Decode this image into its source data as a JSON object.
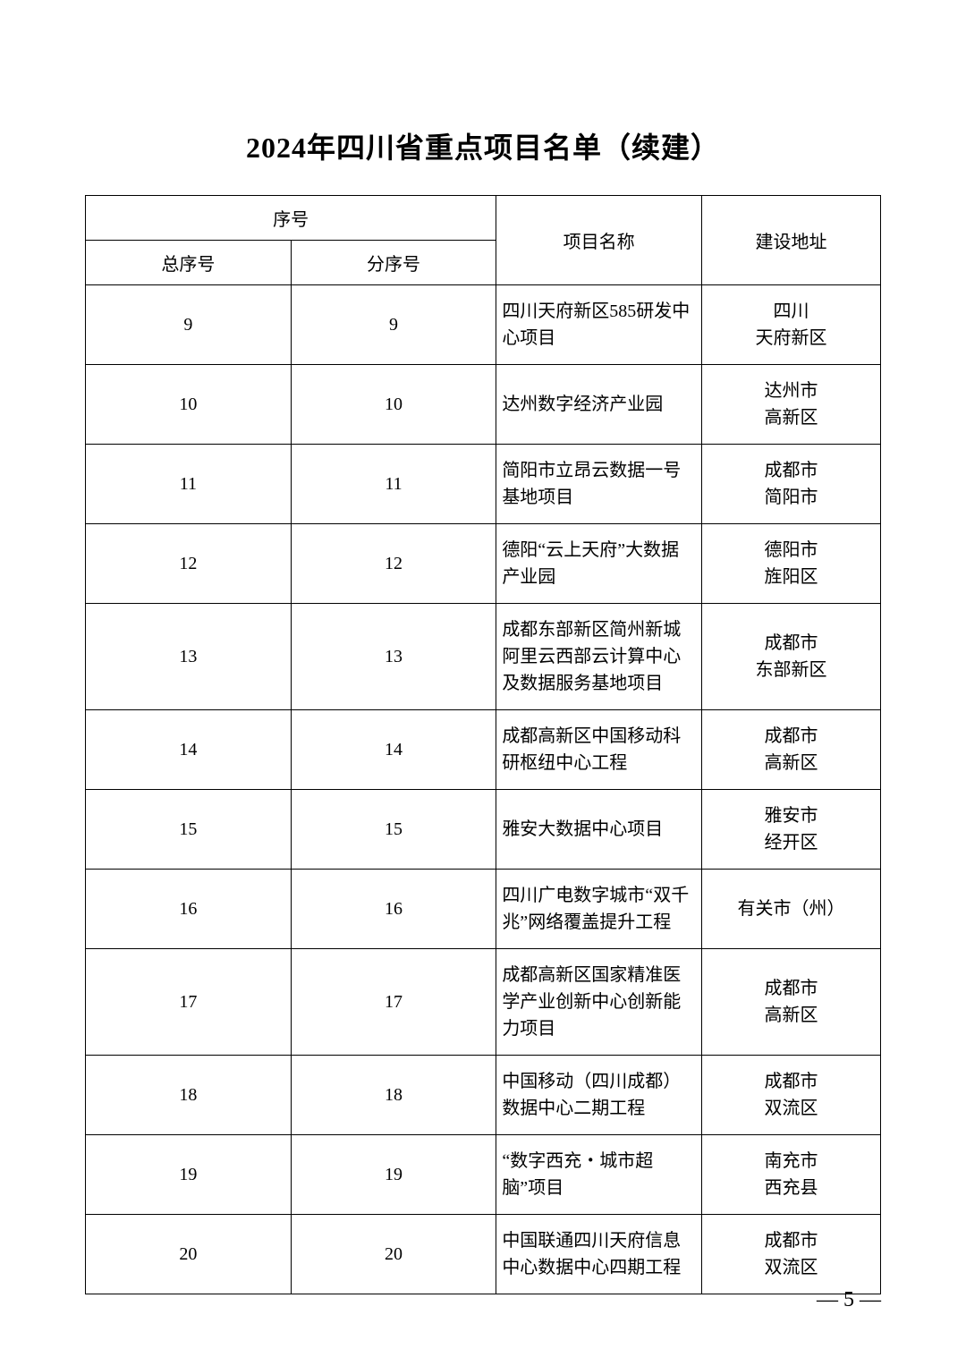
{
  "title": "2024年四川省重点项目名单（续建）",
  "headers": {
    "xuhao": "序号",
    "total": "总序号",
    "sub": "分序号",
    "name": "项目名称",
    "addr": "建设地址"
  },
  "rows": [
    {
      "total": "9",
      "sub": "9",
      "name": "四川天府新区585研发中心项目",
      "addr": "四川\n天府新区"
    },
    {
      "total": "10",
      "sub": "10",
      "name": "达州数字经济产业园",
      "addr": "达州市\n高新区"
    },
    {
      "total": "11",
      "sub": "11",
      "name": "简阳市立昂云数据一号基地项目",
      "addr": "成都市\n简阳市"
    },
    {
      "total": "12",
      "sub": "12",
      "name": "德阳“云上天府”大数据产业园",
      "addr": "德阳市\n旌阳区"
    },
    {
      "total": "13",
      "sub": "13",
      "name": "成都东部新区简州新城阿里云西部云计算中心及数据服务基地项目",
      "addr": "成都市\n东部新区"
    },
    {
      "total": "14",
      "sub": "14",
      "name": "成都高新区中国移动科研枢纽中心工程",
      "addr": "成都市\n高新区"
    },
    {
      "total": "15",
      "sub": "15",
      "name": "雅安大数据中心项目",
      "addr": "雅安市\n经开区"
    },
    {
      "total": "16",
      "sub": "16",
      "name": "四川广电数字城市“双千兆”网络覆盖提升工程",
      "addr": "有关市（州）"
    },
    {
      "total": "17",
      "sub": "17",
      "name": "成都高新区国家精准医学产业创新中心创新能力项目",
      "addr": "成都市\n高新区"
    },
    {
      "total": "18",
      "sub": "18",
      "name": "中国移动（四川成都）数据中心二期工程",
      "addr": "成都市\n双流区"
    },
    {
      "total": "19",
      "sub": "19",
      "name": "“数字西充・城市超脑”项目",
      "addr": "南充市\n西充县"
    },
    {
      "total": "20",
      "sub": "20",
      "name": "中国联通四川天府信息中心数据中心四期工程",
      "addr": "成都市\n双流区"
    }
  ],
  "page_number": "— 5 —"
}
